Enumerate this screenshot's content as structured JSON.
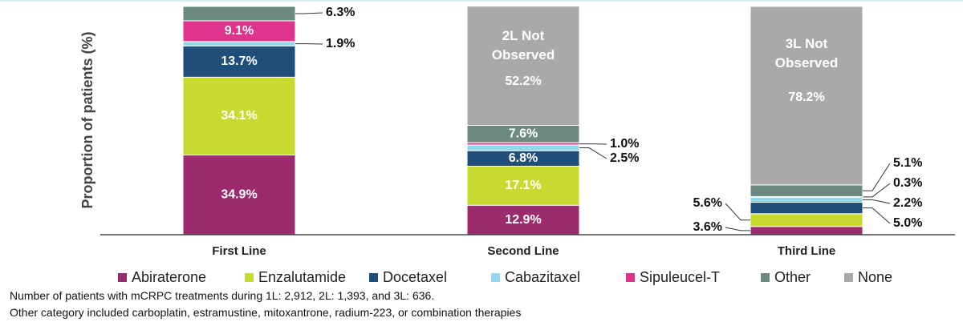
{
  "chart_data": {
    "type": "stacked-bar",
    "y_label": "Proportion of patients (%)",
    "categories": [
      "First Line",
      "Second Line",
      "Third Line"
    ],
    "ylim": [
      0,
      100
    ],
    "series": [
      {
        "name": "Abiraterone",
        "color": "#9b2b6c",
        "values": [
          34.9,
          12.9,
          3.6
        ],
        "value_labels": [
          "34.9%",
          "12.9%",
          "3.6%"
        ]
      },
      {
        "name": "Enzalutamide",
        "color": "#c8d92f",
        "values": [
          34.1,
          17.1,
          5.6
        ],
        "value_labels": [
          "34.1%",
          "17.1%",
          "5.6%"
        ]
      },
      {
        "name": "Docetaxel",
        "color": "#1f4e79",
        "values": [
          13.7,
          6.8,
          5.0
        ],
        "value_labels": [
          "13.7%",
          "6.8%",
          "5.0%"
        ]
      },
      {
        "name": "Cabazitaxel",
        "color": "#92d8ea",
        "values": [
          1.9,
          2.5,
          2.2
        ],
        "value_labels": [
          "1.9%",
          "2.5%",
          "2.2%"
        ]
      },
      {
        "name": "Sipuleucel-T",
        "color": "#e0338b",
        "values": [
          9.1,
          1.0,
          0.3
        ],
        "value_labels": [
          "9.1%",
          "1.0%",
          "0.3%"
        ]
      },
      {
        "name": "Other",
        "color": "#6c8a81",
        "values": [
          6.3,
          7.6,
          5.1
        ],
        "value_labels": [
          "6.3%",
          "7.6%",
          "5.1%"
        ]
      },
      {
        "name": "None",
        "color": "#aaa8a8",
        "values": [
          null,
          52.2,
          78.2
        ],
        "value_labels": [
          null,
          "52.2%",
          "78.2%"
        ]
      }
    ],
    "annotations": [
      "2L Not Observed",
      "3L Not Observed"
    ],
    "footnotes": [
      "Number of patients with mCRPC treatments during 1L: 2,912, 2L: 1,393, and 3L: 636.",
      "Other category included carboplatin, estramustine, mitoxantrone, radium-223, or combination therapies"
    ]
  }
}
